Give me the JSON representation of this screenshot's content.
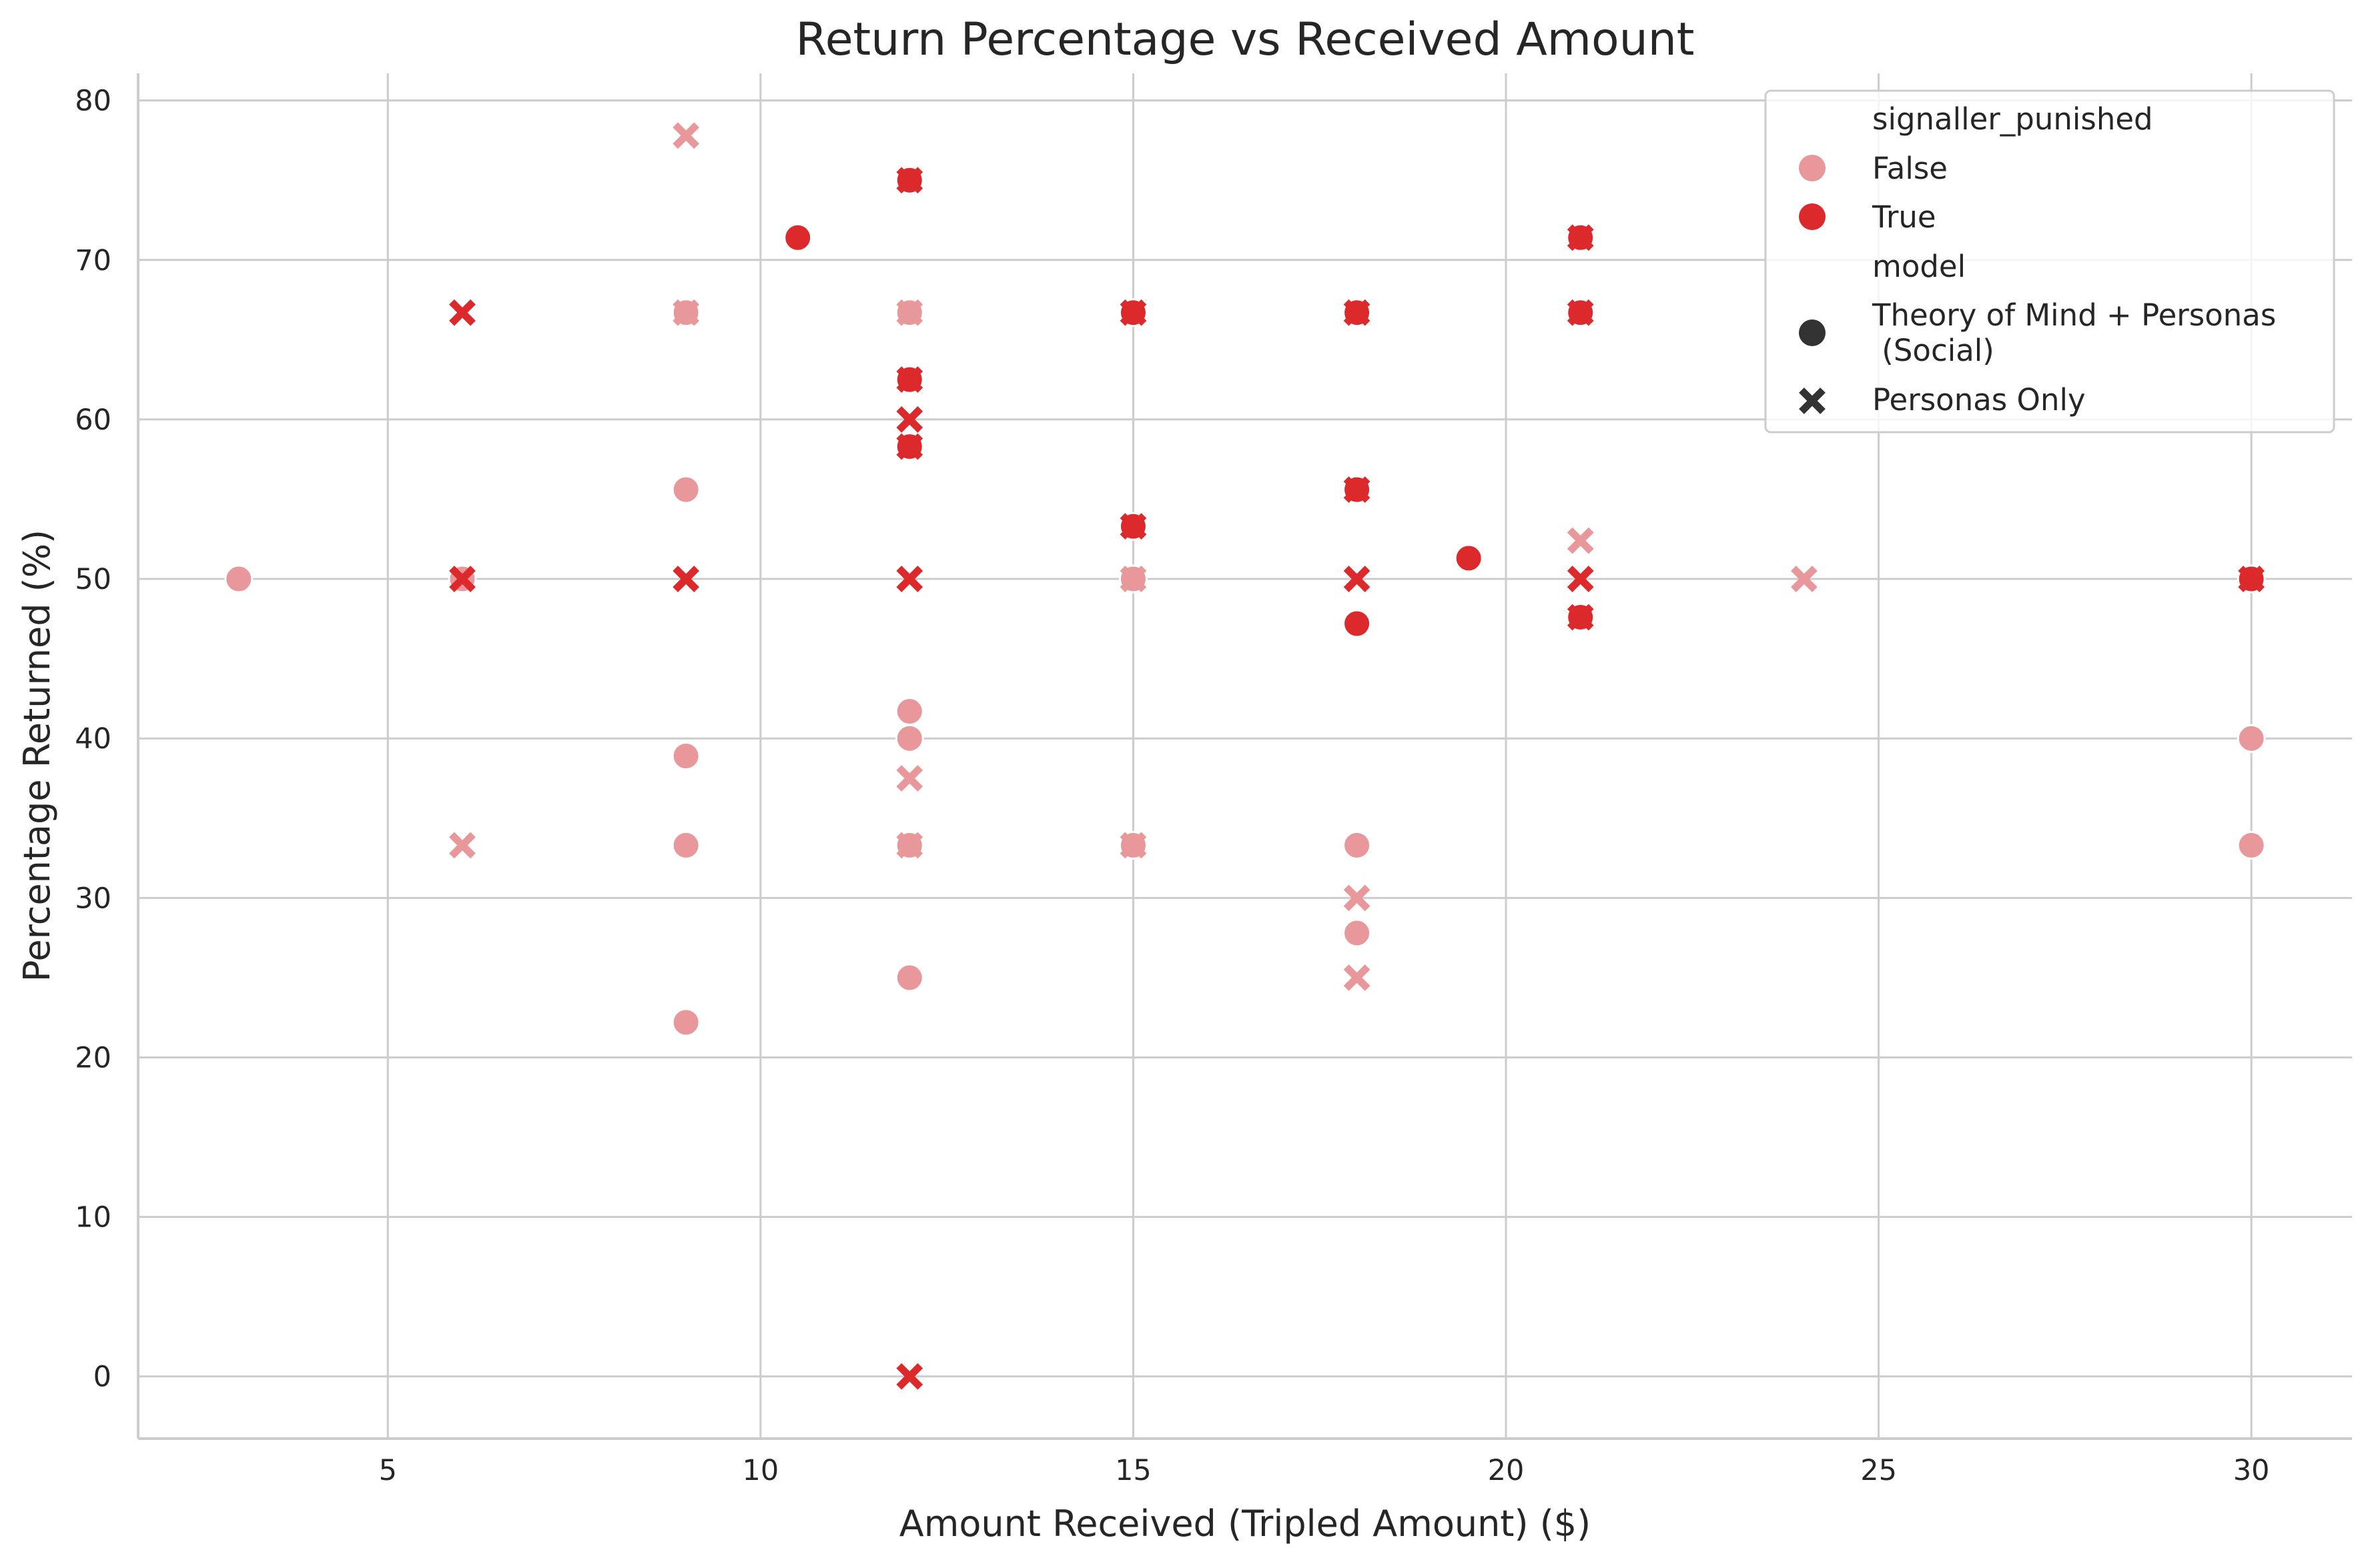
{
  "chart_data": {
    "type": "scatter",
    "title": "Return Percentage vs Received Amount",
    "xlabel": "Amount Received (Tripled Amount) ($)",
    "ylabel": "Percentage Returned (%)",
    "xlim": [
      1.65,
      31.35
    ],
    "ylim": [
      -3.9,
      81.7
    ],
    "xticks": [
      5,
      10,
      15,
      20,
      25,
      30
    ],
    "yticks": [
      0,
      10,
      20,
      30,
      40,
      50,
      60,
      70,
      80
    ],
    "grid": true,
    "legend_position": "top-right",
    "legend": {
      "hue_title": "signaller_punished",
      "hue_entries": [
        {
          "label": "False",
          "color": "#e8979a"
        },
        {
          "label": "True",
          "color": "#dc2a2c"
        }
      ],
      "style_title": "model",
      "style_entries": [
        {
          "label": "Theory of Mind + Personas\n (Social)",
          "marker": "circle"
        },
        {
          "label": "Personas Only",
          "marker": "x"
        }
      ]
    },
    "colors": {
      "False": "#e8979a",
      "True": "#dc2a2c"
    },
    "points": [
      {
        "x": 3,
        "y": 50,
        "punished": false,
        "marker": "circle"
      },
      {
        "x": 6,
        "y": 50,
        "punished": false,
        "marker": "circle"
      },
      {
        "x": 6,
        "y": 33.3,
        "punished": false,
        "marker": "x"
      },
      {
        "x": 6,
        "y": 50,
        "punished": true,
        "marker": "x"
      },
      {
        "x": 6,
        "y": 66.7,
        "punished": true,
        "marker": "x"
      },
      {
        "x": 9,
        "y": 55.6,
        "punished": false,
        "marker": "circle"
      },
      {
        "x": 9,
        "y": 38.9,
        "punished": false,
        "marker": "circle"
      },
      {
        "x": 9,
        "y": 33.3,
        "punished": false,
        "marker": "circle"
      },
      {
        "x": 9,
        "y": 22.2,
        "punished": false,
        "marker": "circle"
      },
      {
        "x": 9,
        "y": 66.7,
        "punished": false,
        "marker": "circle"
      },
      {
        "x": 9,
        "y": 77.8,
        "punished": false,
        "marker": "x"
      },
      {
        "x": 9,
        "y": 66.7,
        "punished": false,
        "marker": "x"
      },
      {
        "x": 9,
        "y": 50,
        "punished": true,
        "marker": "x"
      },
      {
        "x": 10.5,
        "y": 71.4,
        "punished": true,
        "marker": "circle"
      },
      {
        "x": 12,
        "y": 41.7,
        "punished": false,
        "marker": "circle"
      },
      {
        "x": 12,
        "y": 40,
        "punished": false,
        "marker": "circle"
      },
      {
        "x": 12,
        "y": 33.3,
        "punished": false,
        "marker": "circle"
      },
      {
        "x": 12,
        "y": 25,
        "punished": false,
        "marker": "circle"
      },
      {
        "x": 12,
        "y": 66.7,
        "punished": false,
        "marker": "circle"
      },
      {
        "x": 12,
        "y": 66.7,
        "punished": false,
        "marker": "x"
      },
      {
        "x": 12,
        "y": 37.5,
        "punished": false,
        "marker": "x"
      },
      {
        "x": 12,
        "y": 33.3,
        "punished": false,
        "marker": "x"
      },
      {
        "x": 12,
        "y": 75,
        "punished": true,
        "marker": "circle"
      },
      {
        "x": 12,
        "y": 62.5,
        "punished": true,
        "marker": "circle"
      },
      {
        "x": 12,
        "y": 58.3,
        "punished": true,
        "marker": "circle"
      },
      {
        "x": 12,
        "y": 75,
        "punished": true,
        "marker": "x"
      },
      {
        "x": 12,
        "y": 62.5,
        "punished": true,
        "marker": "x"
      },
      {
        "x": 12,
        "y": 60,
        "punished": true,
        "marker": "x"
      },
      {
        "x": 12,
        "y": 58.3,
        "punished": true,
        "marker": "x"
      },
      {
        "x": 12,
        "y": 50,
        "punished": true,
        "marker": "x"
      },
      {
        "x": 12,
        "y": 0,
        "punished": true,
        "marker": "x"
      },
      {
        "x": 15,
        "y": 50,
        "punished": false,
        "marker": "circle"
      },
      {
        "x": 15,
        "y": 33.3,
        "punished": false,
        "marker": "circle"
      },
      {
        "x": 15,
        "y": 50,
        "punished": false,
        "marker": "x"
      },
      {
        "x": 15,
        "y": 33.3,
        "punished": false,
        "marker": "x"
      },
      {
        "x": 15,
        "y": 66.7,
        "punished": true,
        "marker": "circle"
      },
      {
        "x": 15,
        "y": 53.3,
        "punished": true,
        "marker": "circle"
      },
      {
        "x": 15,
        "y": 66.7,
        "punished": true,
        "marker": "x"
      },
      {
        "x": 15,
        "y": 53.3,
        "punished": true,
        "marker": "x"
      },
      {
        "x": 18,
        "y": 33.3,
        "punished": false,
        "marker": "circle"
      },
      {
        "x": 18,
        "y": 27.8,
        "punished": false,
        "marker": "circle"
      },
      {
        "x": 18,
        "y": 30,
        "punished": false,
        "marker": "x"
      },
      {
        "x": 18,
        "y": 25,
        "punished": false,
        "marker": "x"
      },
      {
        "x": 18,
        "y": 66.7,
        "punished": true,
        "marker": "circle"
      },
      {
        "x": 18,
        "y": 55.6,
        "punished": true,
        "marker": "circle"
      },
      {
        "x": 18,
        "y": 47.2,
        "punished": true,
        "marker": "circle"
      },
      {
        "x": 18,
        "y": 66.7,
        "punished": true,
        "marker": "x"
      },
      {
        "x": 18,
        "y": 55.6,
        "punished": true,
        "marker": "x"
      },
      {
        "x": 18,
        "y": 50,
        "punished": true,
        "marker": "x"
      },
      {
        "x": 19.5,
        "y": 51.3,
        "punished": true,
        "marker": "circle"
      },
      {
        "x": 21,
        "y": 52.4,
        "punished": false,
        "marker": "x"
      },
      {
        "x": 21,
        "y": 71.4,
        "punished": true,
        "marker": "circle"
      },
      {
        "x": 21,
        "y": 66.7,
        "punished": true,
        "marker": "circle"
      },
      {
        "x": 21,
        "y": 47.6,
        "punished": true,
        "marker": "circle"
      },
      {
        "x": 21,
        "y": 71.4,
        "punished": true,
        "marker": "x"
      },
      {
        "x": 21,
        "y": 66.7,
        "punished": true,
        "marker": "x"
      },
      {
        "x": 21,
        "y": 50,
        "punished": true,
        "marker": "x"
      },
      {
        "x": 21,
        "y": 47.6,
        "punished": true,
        "marker": "x"
      },
      {
        "x": 24,
        "y": 50,
        "punished": false,
        "marker": "x"
      },
      {
        "x": 30,
        "y": 40,
        "punished": false,
        "marker": "circle"
      },
      {
        "x": 30,
        "y": 33.3,
        "punished": false,
        "marker": "circle"
      },
      {
        "x": 30,
        "y": 50,
        "punished": true,
        "marker": "circle"
      },
      {
        "x": 30,
        "y": 50,
        "punished": true,
        "marker": "x"
      }
    ]
  }
}
